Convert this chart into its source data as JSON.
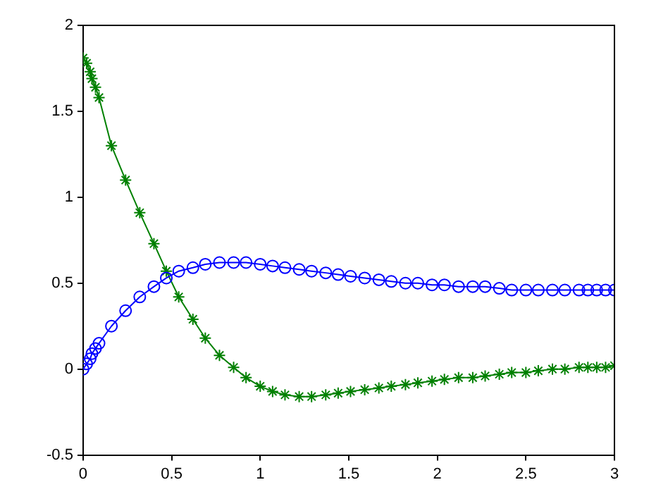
{
  "chart_data": {
    "type": "line",
    "x": [
      0,
      0.02,
      0.04,
      0.05,
      0.07,
      0.09,
      0.16,
      0.24,
      0.32,
      0.4,
      0.47,
      0.54,
      0.62,
      0.69,
      0.77,
      0.85,
      0.92,
      1.0,
      1.07,
      1.14,
      1.22,
      1.29,
      1.37,
      1.44,
      1.51,
      1.59,
      1.67,
      1.74,
      1.82,
      1.89,
      1.97,
      2.04,
      2.12,
      2.2,
      2.27,
      2.35,
      2.42,
      2.5,
      2.57,
      2.65,
      2.72,
      2.8,
      2.85,
      2.9,
      2.95,
      3.0
    ],
    "series": [
      {
        "color": "#0000ff",
        "marker": "circle",
        "values": [
          0,
          0.03,
          0.06,
          0.09,
          0.12,
          0.15,
          0.25,
          0.34,
          0.42,
          0.48,
          0.53,
          0.57,
          0.59,
          0.61,
          0.62,
          0.62,
          0.62,
          0.61,
          0.6,
          0.59,
          0.58,
          0.57,
          0.56,
          0.55,
          0.54,
          0.53,
          0.52,
          0.51,
          0.5,
          0.5,
          0.49,
          0.49,
          0.48,
          0.48,
          0.48,
          0.47,
          0.46,
          0.46,
          0.46,
          0.46,
          0.46,
          0.46,
          0.46,
          0.46,
          0.46,
          0.46
        ]
      },
      {
        "color": "#008000",
        "marker": "cross",
        "values": [
          1.81,
          1.78,
          1.73,
          1.69,
          1.64,
          1.58,
          1.3,
          1.1,
          0.91,
          0.73,
          0.57,
          0.42,
          0.29,
          0.18,
          0.08,
          0.01,
          -0.05,
          -0.1,
          -0.13,
          -0.15,
          -0.16,
          -0.16,
          -0.15,
          -0.14,
          -0.13,
          -0.12,
          -0.11,
          -0.1,
          -0.09,
          -0.08,
          -0.07,
          -0.06,
          -0.05,
          -0.05,
          -0.04,
          -0.03,
          -0.02,
          -0.02,
          -0.01,
          0,
          0,
          0.01,
          0.01,
          0.01,
          0.01,
          0.02
        ]
      }
    ],
    "xlim": [
      0,
      3
    ],
    "xticks": [
      0,
      0.5,
      1,
      1.5,
      2,
      2.5,
      3
    ],
    "ylim": [
      -0.5,
      2
    ],
    "yticks": [
      -0.5,
      0,
      0.5,
      1,
      1.5,
      2
    ],
    "grid": false,
    "legend": false,
    "line_style": "solid"
  }
}
